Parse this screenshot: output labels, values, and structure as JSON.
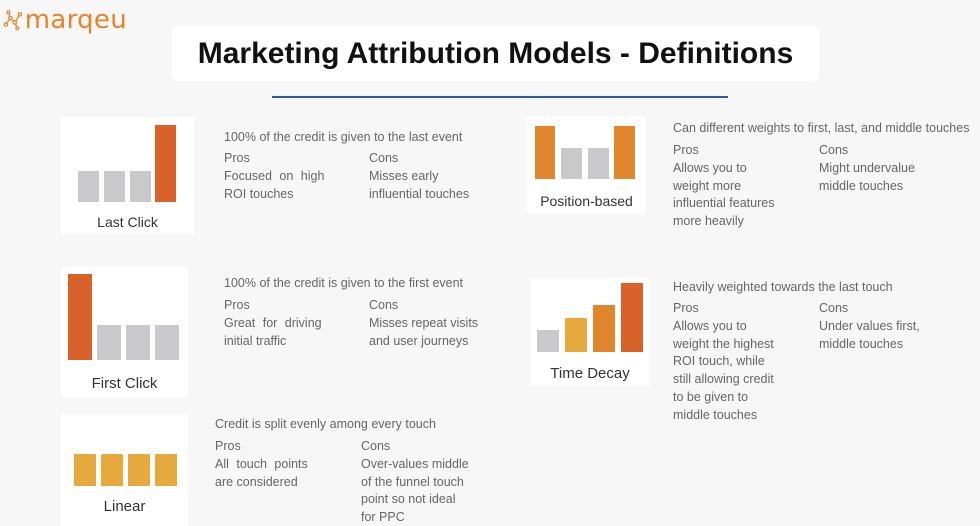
{
  "brand": {
    "name": "marqeu"
  },
  "title": "Marketing Attribution Models - Definitions",
  "colors": {
    "orange": "#d9622b",
    "gray": "#c9c9cc",
    "amber": "#e0872e",
    "yellow": "#e5a93d",
    "rule": "#2a5aa6",
    "brand": "#e8832a"
  },
  "models": {
    "last_click": {
      "label": "Last Click",
      "description": "100% of the credit is given to the last event",
      "pros_label": "Pros",
      "pros": [
        "Focused on high",
        "ROI touches"
      ],
      "cons_label": "Cons",
      "cons": [
        "Misses early",
        "influential touches"
      ]
    },
    "first_click": {
      "label": "First Click",
      "description": "100% of the credit is given to the first event",
      "pros_label": "Pros",
      "pros": [
        "Great for driving",
        "initial traffic"
      ],
      "cons_label": "Cons",
      "cons": [
        "Misses repeat visits",
        "and user journeys"
      ]
    },
    "linear": {
      "label": "Linear",
      "description": "Credit is split evenly among every touch",
      "pros_label": "Pros",
      "pros": [
        "All touch points",
        "are considered"
      ],
      "cons_label": "Cons",
      "cons": [
        "Over-values middle",
        "of the funnel touch",
        "point so not ideal",
        "for PPC"
      ]
    },
    "position_based": {
      "label": "Position-based",
      "description": "Can different weights to first, last, and middle touches",
      "pros_label": "Pros",
      "pros": [
        "Allows you to",
        "weight more",
        "influential features",
        "more heavily"
      ],
      "cons_label": "Cons",
      "cons": [
        "Might undervalue",
        "middle touches"
      ]
    },
    "time_decay": {
      "label": "Time Decay",
      "description": "Heavily weighted towards the last touch",
      "pros_label": "Pros",
      "pros": [
        "Allows you to",
        "weight the highest",
        "ROI touch, while",
        "still allowing credit",
        "to be given to",
        "middle touches"
      ],
      "cons_label": "Cons",
      "cons": [
        "Under values first,",
        "middle touches"
      ]
    }
  }
}
